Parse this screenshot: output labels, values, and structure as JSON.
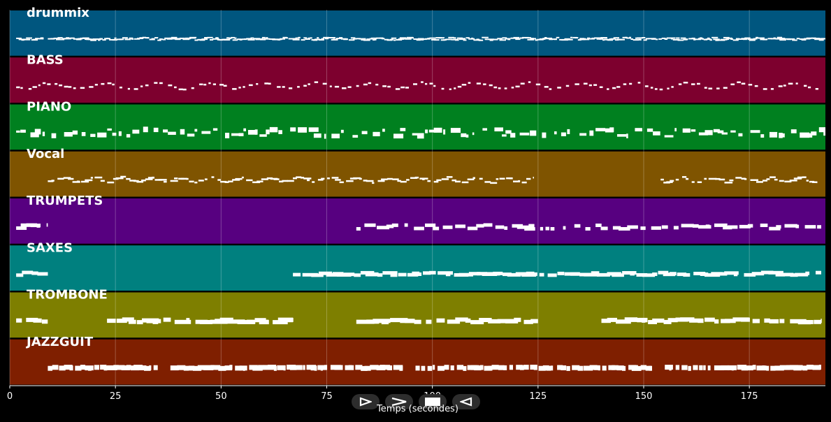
{
  "chart_data": {
    "type": "piano-roll",
    "xlabel": "Temps (secondes)",
    "xlim": [
      0,
      193
    ],
    "x_ticks": [
      0,
      25,
      50,
      75,
      100,
      125,
      150,
      175
    ],
    "grid": true,
    "tracks": [
      {
        "name": "drummix",
        "color": "#00567f",
        "active": [
          [
            1.5,
            8
          ],
          [
            9,
            193
          ]
        ],
        "style": "drums"
      },
      {
        "name": "BASS",
        "color": "#7d002e",
        "active": [
          [
            1.5,
            192
          ]
        ],
        "style": "bass"
      },
      {
        "name": "PIANO",
        "color": "#00801f",
        "active": [
          [
            1.5,
            193
          ]
        ],
        "style": "piano"
      },
      {
        "name": "Vocal",
        "color": "#7f5400",
        "active": [
          [
            9,
            124
          ],
          [
            154,
            191
          ]
        ],
        "style": "vocal"
      },
      {
        "name": "TRUMPETS",
        "color": "#570080",
        "active": [
          [
            1.5,
            9
          ],
          [
            82,
            192
          ]
        ],
        "style": "trumpet"
      },
      {
        "name": "SAXES",
        "color": "#00807f",
        "active": [
          [
            1.5,
            9
          ],
          [
            67,
            192
          ]
        ],
        "style": "sax"
      },
      {
        "name": "TROMBONE",
        "color": "#7e7f00",
        "active": [
          [
            1.5,
            9
          ],
          [
            23,
            67
          ],
          [
            82,
            125
          ],
          [
            140,
            192
          ]
        ],
        "style": "trombone"
      },
      {
        "name": "JAZZGUIT",
        "color": "#7f1f00",
        "active": [
          [
            9,
            35
          ],
          [
            38,
            93
          ],
          [
            96,
            152
          ],
          [
            155,
            192
          ]
        ],
        "style": "guitar"
      }
    ]
  },
  "controls": [
    {
      "name": "play-forward-icon"
    },
    {
      "name": "fast-forward-icon"
    },
    {
      "name": "stop-icon"
    },
    {
      "name": "rewind-icon"
    }
  ]
}
